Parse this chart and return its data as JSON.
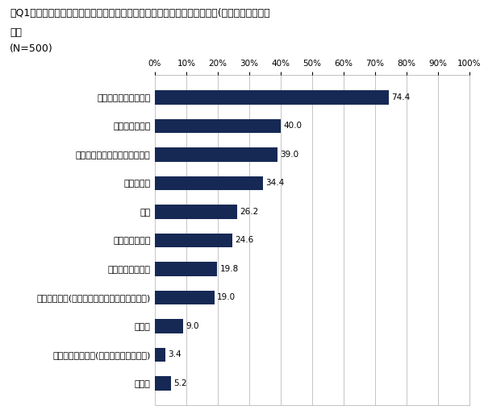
{
  "title_line1": "》Q1「あなたが、医療機関を選ぶ際に重視している点をお答えください。(お答えはいくつで",
  "title_line2": "も）",
  "subtitle": "(N=500)",
  "categories": [
    "自宅・職場からの距離",
    "アクセスのよさ",
    "院長・スタッフの説明の丁寧さ",
    "評判のよさ",
    "実績",
    "待ち時間の短さ",
    "予約のとりやすさ",
    "診療受付時間(夜間や休日も診療を行っている)",
    "費用感",
    "デザイン、快適さ(外観や内装の綺麗さ)",
    "その他"
  ],
  "values": [
    74.4,
    40.0,
    39.0,
    34.4,
    26.2,
    24.6,
    19.8,
    19.0,
    9.0,
    3.4,
    5.2
  ],
  "bar_color": "#162955",
  "background_color": "#ffffff",
  "xlim": [
    0,
    100
  ],
  "xticks": [
    0,
    10,
    20,
    30,
    40,
    50,
    60,
    70,
    80,
    90,
    100
  ],
  "title_fontsize": 9.0,
  "label_fontsize": 8.0,
  "value_fontsize": 7.5,
  "tick_fontsize": 7.5,
  "bar_height": 0.5
}
